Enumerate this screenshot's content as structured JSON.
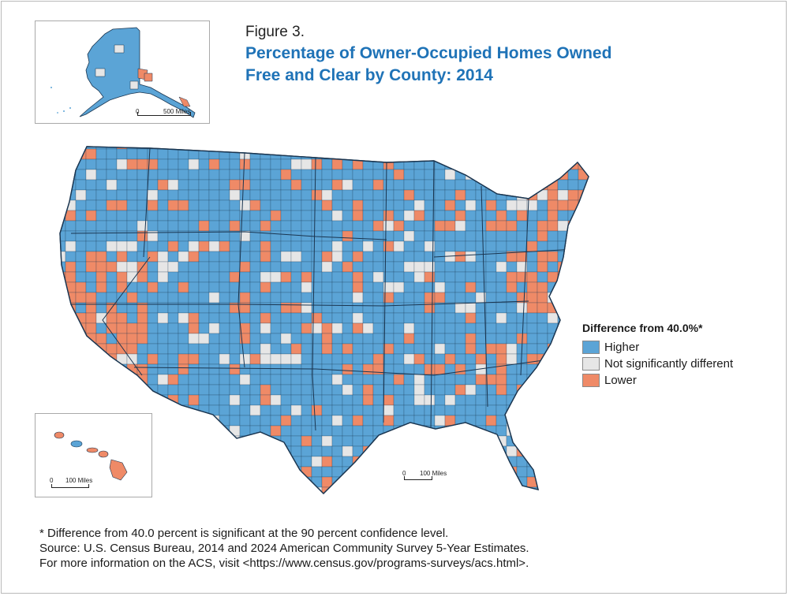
{
  "figure": {
    "label": "Figure 3.",
    "title_line1": "Percentage of Owner-Occupied Homes Owned",
    "title_line2": "Free and Clear by County: 2014"
  },
  "insets": {
    "alaska": {
      "scale_start": "0",
      "scale_end": "500 Miles"
    },
    "hawaii": {
      "scale_start": "0",
      "scale_end": "100 Miles"
    }
  },
  "main_map": {
    "scale_start": "0",
    "scale_end": "100 Miles"
  },
  "legend": {
    "title": "Difference from 40.0%*",
    "items": [
      {
        "label": "Higher",
        "color": "#5ba4d6"
      },
      {
        "label": "Not significantly different",
        "color": "#e6e6e6"
      },
      {
        "label": "Lower",
        "color": "#ef8a67"
      }
    ]
  },
  "notes": [
    "* Difference from 40.0 percent is significant at the 90 percent confidence level.",
    "Source: U.S. Census Bureau, 2014 and 2024 American Community Survey 5-Year Estimates.",
    "For more information on the ACS, visit <https://www.census.gov/programs-surveys/acs.html>."
  ],
  "colors": {
    "higher": "#5ba4d6",
    "not_significant": "#e6e6e6",
    "lower": "#ef8a67",
    "border": "#1a3550"
  }
}
